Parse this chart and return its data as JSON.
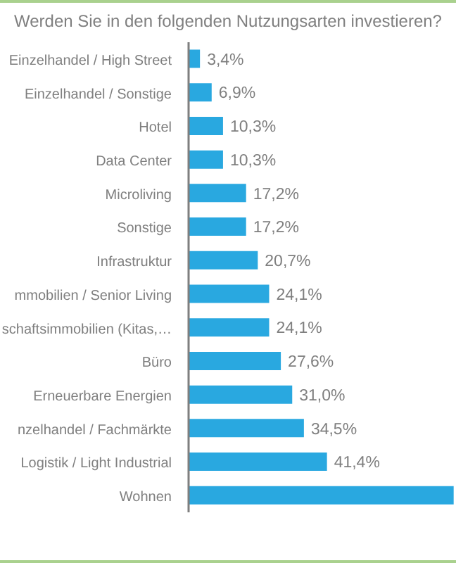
{
  "chart_data": {
    "type": "bar",
    "orientation": "horizontal",
    "title": "Werden Sie in den folgenden Nutzungsarten investieren?",
    "categories": [
      "Einzelhandel / High Street",
      "Einzelhandel / Sonstige",
      "Hotel",
      "Data Center",
      "Microliving",
      "Sonstige",
      "Infrastruktur",
      "mmobilien / Senior Living",
      "schaftsimmobilien (Kitas,…",
      "Büro",
      "Erneuerbare Energien",
      "nzelhandel / Fachmärkte",
      "Logistik / Light Industrial",
      "Wohnen"
    ],
    "values": [
      3.4,
      6.9,
      10.3,
      10.3,
      17.2,
      17.2,
      20.7,
      24.1,
      24.1,
      27.6,
      31.0,
      34.5,
      41.4,
      79.3
    ],
    "value_labels": [
      "3,4%",
      "6,9%",
      "10,3%",
      "10,3%",
      "17,2%",
      "17,2%",
      "20,7%",
      "24,1%",
      "24,1%",
      "27,6%",
      "31,0%",
      "34,5%",
      "41,4%",
      null
    ],
    "color": "#29a8e0",
    "xlim": [
      0,
      80
    ],
    "tick_labels": "y"
  }
}
